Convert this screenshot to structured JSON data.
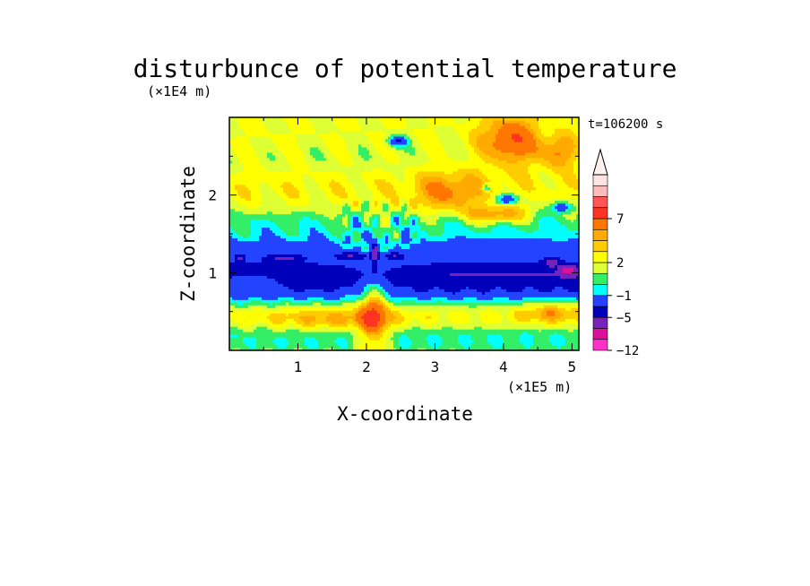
{
  "chart_data": {
    "type": "heatmap",
    "title": "disturbunce of potential temperature",
    "time_label": "t=106200 s",
    "xlabel": "X-coordinate",
    "ylabel": "Z-coordinate",
    "x_unit": "(×1E5 m)",
    "y_unit": "(×1E4 m)",
    "xlim": [
      0,
      5.1
    ],
    "ylim": [
      0,
      3.0
    ],
    "x_ticks": [
      1,
      2,
      3,
      4,
      5
    ],
    "y_ticks": [
      1,
      2
    ],
    "grid": false,
    "colorbar": {
      "extend": "max",
      "labels": [
        "-12",
        "-5",
        "-1",
        "2",
        "7"
      ],
      "label_values": [
        -12,
        -5,
        -1,
        2,
        7
      ],
      "colors": [
        "#ff33cc",
        "#dd1199",
        "#7722bb",
        "#0000bb",
        "#2244ff",
        "#00ffff",
        "#33ee66",
        "#ddff33",
        "#ffff00",
        "#ffcc00",
        "#ffaa00",
        "#ff7700",
        "#ff3322",
        "#ff5555",
        "#ffbbbb",
        "#ffe4e4"
      ]
    },
    "field": {
      "background": 2,
      "bands": [
        {
          "z": 0.05,
          "w": 0.1,
          "v": 1
        },
        {
          "z": 0.22,
          "w": 0.12,
          "v": 0
        },
        {
          "z": 0.4,
          "w": 0.16,
          "v": 3
        },
        {
          "z": 0.62,
          "w": 0.1,
          "v": 1
        },
        {
          "z": 0.75,
          "w": 0.1,
          "v": -0.3
        },
        {
          "z": 0.95,
          "w": 0.14,
          "v": -1.6
        },
        {
          "z": 1.05,
          "w": 0.16,
          "v": -1.7
        },
        {
          "z": 1.35,
          "w": 0.1,
          "v": 0
        },
        {
          "z": 1.45,
          "w": 0.14,
          "v": 1
        },
        {
          "z": 1.65,
          "w": 0.14,
          "v": 0.4
        },
        {
          "z": 2.1,
          "w": 0.2,
          "v": 2.5
        },
        {
          "z": 2.45,
          "w": 0.14,
          "v": 1.5
        },
        {
          "z": 2.8,
          "w": 0.12,
          "v": 2
        }
      ],
      "blobs": [
        {
          "x": 2.1,
          "z": 1.15,
          "sx": 0.45,
          "sz": 0.25,
          "v": 1.5
        },
        {
          "x": 2.1,
          "z": 0.45,
          "sx": 0.15,
          "sz": 0.35,
          "v": 5
        },
        {
          "x": 2.12,
          "z": 1.25,
          "sx": 0.04,
          "sz": 0.12,
          "v": -6
        },
        {
          "x": 1.8,
          "z": 1.22,
          "sx": 0.2,
          "sz": 0.04,
          "v": -4.5
        },
        {
          "x": 2.4,
          "z": 1.22,
          "sx": 0.12,
          "sz": 0.04,
          "v": -4.5
        },
        {
          "x": 0.15,
          "z": 1.2,
          "sx": 0.05,
          "sz": 0.03,
          "v": -4.5
        },
        {
          "x": 0.8,
          "z": 1.2,
          "sx": 0.2,
          "sz": 0.03,
          "v": -4
        },
        {
          "x": 4.95,
          "z": 1.05,
          "sx": 0.08,
          "sz": 0.04,
          "v": -4.5
        },
        {
          "x": 4.7,
          "z": 1.15,
          "sx": 0.08,
          "sz": 0.04,
          "v": -4
        },
        {
          "x": 2.45,
          "z": 2.7,
          "sx": 0.1,
          "sz": 0.05,
          "v": -5
        },
        {
          "x": 4.05,
          "z": 1.95,
          "sx": 0.12,
          "sz": 0.05,
          "v": -5
        },
        {
          "x": 4.85,
          "z": 1.85,
          "sx": 0.1,
          "sz": 0.05,
          "v": -5
        },
        {
          "x": 3.75,
          "z": 2.1,
          "sx": 0.04,
          "sz": 0.03,
          "v": -4.5
        },
        {
          "x": 4.1,
          "z": 2.7,
          "sx": 0.3,
          "sz": 0.22,
          "v": 5
        },
        {
          "x": 3.9,
          "z": 1.75,
          "sx": 0.3,
          "sz": 0.08,
          "v": 4
        },
        {
          "x": 4.8,
          "z": 2.55,
          "sx": 0.2,
          "sz": 0.15,
          "v": 3.5
        },
        {
          "x": 3.2,
          "z": 2.05,
          "sx": 0.35,
          "sz": 0.2,
          "v": 3
        },
        {
          "x": 0.3,
          "z": 0.9,
          "sx": 0.35,
          "sz": 0.08,
          "v": 3
        },
        {
          "x": 1.5,
          "z": 0.4,
          "sx": 0.6,
          "sz": 0.1,
          "v": 2
        },
        {
          "x": 4.7,
          "z": 0.5,
          "sx": 0.3,
          "sz": 0.1,
          "v": 2.5
        },
        {
          "x": 0.6,
          "z": 2.5,
          "sx": 0.3,
          "sz": 0.2,
          "v": 0.2
        }
      ],
      "waves": [
        {
          "kx": 9.0,
          "kz": 6.0,
          "amp": 0.9,
          "x0": 0.0,
          "x1": 5.1,
          "z0": 1.4,
          "z1": 3.0
        },
        {
          "kx": 14.0,
          "kz": 4.0,
          "amp": 0.6,
          "x0": 0.0,
          "x1": 5.1,
          "z0": 0.0,
          "z1": 0.9
        },
        {
          "kx": 22.0,
          "kz": 1.0,
          "amp": 1.4,
          "x0": 1.6,
          "x1": 2.8,
          "z0": 1.3,
          "z1": 2.0
        }
      ]
    }
  }
}
